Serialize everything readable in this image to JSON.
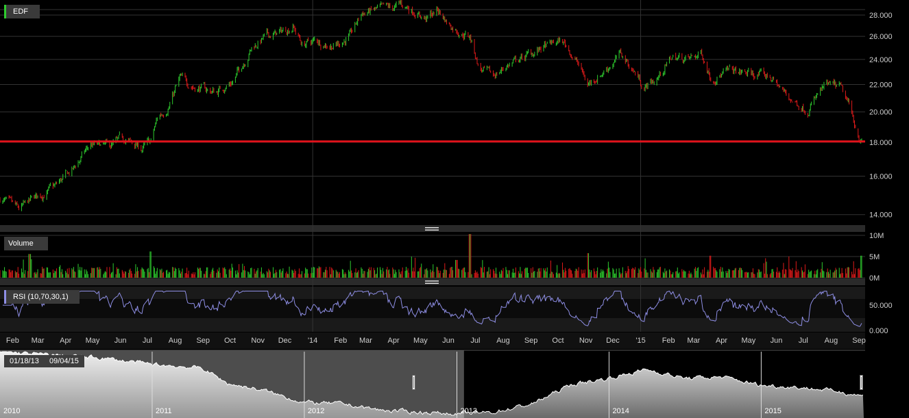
{
  "app": {
    "symbol": "EDF",
    "volume_label": "Volume",
    "rsi_label": "RSI (10,70,30,1)",
    "range_start": "01/18/13",
    "range_end": "09/04/15"
  },
  "colors": {
    "up": "#2ecc2e",
    "down": "#e01a1a",
    "rsi_line": "#8f8fe6",
    "support_line": "#e0121b",
    "navigator_fill": "#cfcfcf"
  },
  "chart_data": [
    {
      "type": "candlestick",
      "title": "EDF",
      "x_range": [
        "2013-01-18",
        "2015-09-04"
      ],
      "ylim": [
        13.5,
        29.5
      ],
      "log_scale": true,
      "yticks": [
        "14.000",
        "16.000",
        "18.000",
        "20.000",
        "22.000",
        "24.000",
        "26.000",
        "28.000"
      ],
      "xticks": [
        "Feb",
        "Mar",
        "Apr",
        "May",
        "Jun",
        "Jul",
        "Aug",
        "Sep",
        "Oct",
        "Nov",
        "Dec",
        "'14",
        "Feb",
        "Mar",
        "Apr",
        "May",
        "Jun",
        "Jul",
        "Aug",
        "Sep",
        "Oct",
        "Nov",
        "Dec",
        "'15",
        "Feb",
        "Mar",
        "Apr",
        "May",
        "Jun",
        "Jul",
        "Aug",
        "Sep"
      ],
      "horizontal_line": 18.05,
      "close_anchors": [
        [
          "2013-01-18",
          14.8
        ],
        [
          "2013-02-08",
          14.2
        ],
        [
          "2013-02-25",
          14.8
        ],
        [
          "2013-03-20",
          15.4
        ],
        [
          "2013-04-10",
          16.4
        ],
        [
          "2013-04-28",
          17.8
        ],
        [
          "2013-05-20",
          17.7
        ],
        [
          "2013-06-05",
          18.2
        ],
        [
          "2013-06-25",
          17.6
        ],
        [
          "2013-07-05",
          18.0
        ],
        [
          "2013-07-12",
          19.5
        ],
        [
          "2013-07-25",
          20.5
        ],
        [
          "2013-08-06",
          22.4
        ],
        [
          "2013-08-25",
          21.8
        ],
        [
          "2013-09-15",
          21.4
        ],
        [
          "2013-10-05",
          22.3
        ],
        [
          "2013-10-25",
          25.0
        ],
        [
          "2013-11-10",
          26.0
        ],
        [
          "2013-11-25",
          26.3
        ],
        [
          "2013-12-10",
          27.0
        ],
        [
          "2013-12-20",
          25.3
        ],
        [
          "2014-01-05",
          25.6
        ],
        [
          "2014-01-25",
          25.2
        ],
        [
          "2014-02-12",
          26.0
        ],
        [
          "2014-02-25",
          28.2
        ],
        [
          "2014-03-15",
          28.5
        ],
        [
          "2014-03-30",
          28.6
        ],
        [
          "2014-04-10",
          29.0
        ],
        [
          "2014-04-25",
          28.4
        ],
        [
          "2014-05-08",
          27.6
        ],
        [
          "2014-05-20",
          28.5
        ],
        [
          "2014-06-01",
          27.2
        ],
        [
          "2014-06-15",
          26.4
        ],
        [
          "2014-06-25",
          26.0
        ],
        [
          "2014-07-05",
          23.3
        ],
        [
          "2014-07-20",
          22.6
        ],
        [
          "2014-08-05",
          23.5
        ],
        [
          "2014-08-25",
          24.2
        ],
        [
          "2014-09-15",
          25.0
        ],
        [
          "2014-10-05",
          25.6
        ],
        [
          "2014-10-12",
          25.0
        ],
        [
          "2014-10-22",
          23.8
        ],
        [
          "2014-11-03",
          22.0
        ],
        [
          "2014-11-20",
          23.0
        ],
        [
          "2014-12-10",
          24.4
        ],
        [
          "2014-12-25",
          23.0
        ],
        [
          "2015-01-05",
          21.8
        ],
        [
          "2015-01-20",
          22.5
        ],
        [
          "2015-02-05",
          24.2
        ],
        [
          "2015-02-25",
          24.0
        ],
        [
          "2015-03-10",
          24.5
        ],
        [
          "2015-03-20",
          22.6
        ],
        [
          "2015-04-10",
          23.0
        ],
        [
          "2015-05-05",
          22.8
        ],
        [
          "2015-05-25",
          22.6
        ],
        [
          "2015-06-15",
          21.0
        ],
        [
          "2015-07-05",
          20.2
        ],
        [
          "2015-07-25",
          21.8
        ],
        [
          "2015-08-10",
          21.8
        ],
        [
          "2015-08-20",
          20.5
        ],
        [
          "2015-08-27",
          19.2
        ],
        [
          "2015-09-04",
          18.0
        ]
      ]
    },
    {
      "type": "bar",
      "title": "Volume",
      "ylim": [
        0,
        10
      ],
      "yticks": [
        "0M",
        "5M",
        "10M"
      ],
      "unit": "M",
      "spikes": [
        [
          "2013-02-20",
          5.6
        ],
        [
          "2013-07-05",
          6.2
        ],
        [
          "2014-04-20",
          5.0
        ],
        [
          "2014-06-10",
          4.2
        ],
        [
          "2014-06-25",
          10.3
        ],
        [
          "2014-11-03",
          5.8
        ],
        [
          "2015-03-20",
          5.2
        ],
        [
          "2015-09-04",
          5.2
        ]
      ]
    },
    {
      "type": "line",
      "title": "RSI (10,70,30,1)",
      "ylim": [
        0,
        80
      ],
      "yticks": [
        "0.000",
        "50.000"
      ],
      "bands": [
        30,
        70
      ]
    },
    {
      "type": "area",
      "title": "navigator",
      "xticks": [
        "2010",
        "2011",
        "2012",
        "2013",
        "2014",
        "2015"
      ],
      "selected_range": [
        "01/18/13",
        "09/04/15"
      ],
      "anchors": [
        [
          "2010-01-01",
          1.0
        ],
        [
          "2010-04-01",
          0.96
        ],
        [
          "2010-09-01",
          0.9
        ],
        [
          "2011-01-01",
          0.8
        ],
        [
          "2011-05-01",
          0.74
        ],
        [
          "2011-07-01",
          0.5
        ],
        [
          "2011-10-01",
          0.38
        ],
        [
          "2012-01-01",
          0.2
        ],
        [
          "2012-04-01",
          0.18
        ],
        [
          "2012-07-01",
          0.08
        ],
        [
          "2012-10-01",
          0.05
        ],
        [
          "2013-01-01",
          0.02
        ],
        [
          "2013-04-01",
          0.05
        ],
        [
          "2013-07-01",
          0.18
        ],
        [
          "2013-10-01",
          0.48
        ],
        [
          "2014-01-01",
          0.58
        ],
        [
          "2014-04-01",
          0.72
        ],
        [
          "2014-07-01",
          0.58
        ],
        [
          "2014-10-01",
          0.6
        ],
        [
          "2015-01-01",
          0.47
        ],
        [
          "2015-04-01",
          0.44
        ],
        [
          "2015-07-01",
          0.38
        ],
        [
          "2015-09-04",
          0.3
        ]
      ]
    }
  ]
}
